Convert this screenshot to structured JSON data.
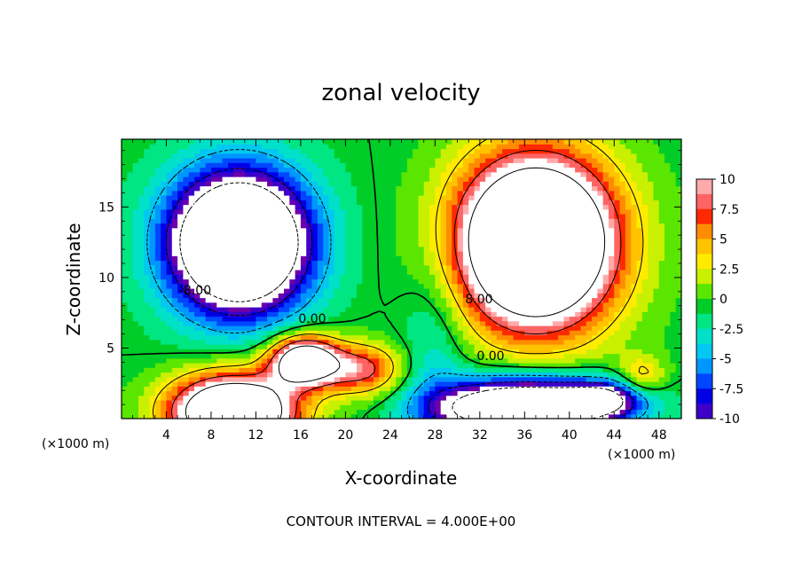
{
  "chart_data": {
    "type": "heatmap",
    "title": "zonal velocity",
    "xlabel": "X-coordinate",
    "ylabel": "Z-coordinate",
    "x_unit": "(×1000 m)",
    "y_unit": "(×1000 m)",
    "xlim": [
      0,
      50
    ],
    "ylim": [
      0,
      19.8
    ],
    "x_ticks": [
      4,
      8,
      12,
      16,
      20,
      24,
      28,
      32,
      36,
      40,
      44,
      48
    ],
    "y_ticks": [
      5,
      10,
      15
    ],
    "colorbar": {
      "ticks": [
        "10",
        "7.5",
        "5",
        "2.5",
        "0",
        "-2.5",
        "-5",
        "-7.5",
        "-10"
      ],
      "range": [
        -10,
        10
      ]
    },
    "contour_labels": [
      "-8.00",
      "0.00",
      "8.00",
      "0.00"
    ],
    "contour_interval_text": "CONTOUR INTERVAL = 4.000E+00",
    "features": [
      {
        "x": 10.5,
        "z": 12.5,
        "value": -14,
        "type": "min"
      },
      {
        "x": 37,
        "z": 12.5,
        "value": 14,
        "type": "max"
      },
      {
        "x": 10,
        "z": 1.0,
        "value": 13,
        "type": "max"
      },
      {
        "x": 36,
        "z": 1.2,
        "value": -13,
        "type": "min"
      },
      {
        "x": 16.2,
        "z": 4.2,
        "value": 13,
        "type": "max"
      }
    ]
  },
  "labels": {
    "title": "zonal velocity",
    "xlabel": "X-coordinate",
    "ylabel": "Z-coordinate",
    "x_unit_left": "(×1000 m)",
    "x_unit_right": "(×1000 m)",
    "contour_note": "CONTOUR INTERVAL = 4.000E+00"
  }
}
